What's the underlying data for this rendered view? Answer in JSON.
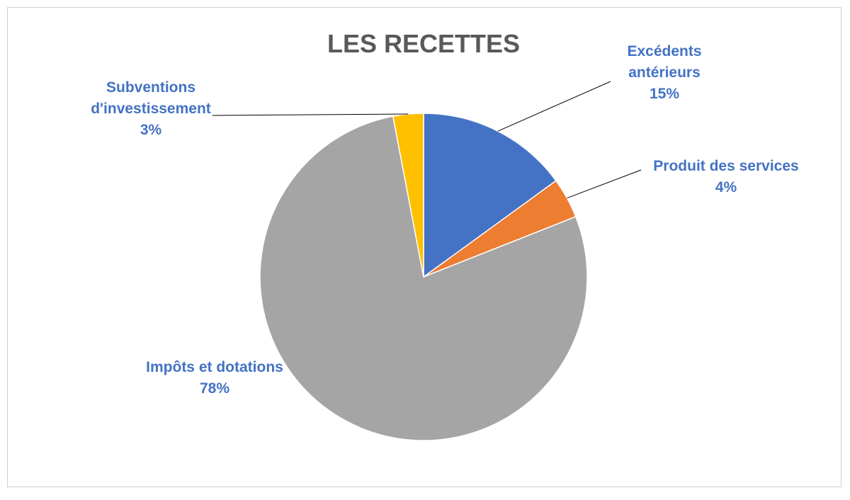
{
  "chart_data": {
    "type": "pie",
    "title": "LES RECETTES",
    "categories": [
      "Excédents antérieurs",
      "Produit des services",
      "Impôts et dotations",
      "Subventions d'investissement"
    ],
    "values": [
      15,
      4,
      78,
      3
    ],
    "value_labels": [
      "15%",
      "4%",
      "78%",
      "3%"
    ],
    "colors": [
      "#4472c4",
      "#ed7d31",
      "#a5a5a5",
      "#ffc000"
    ]
  }
}
